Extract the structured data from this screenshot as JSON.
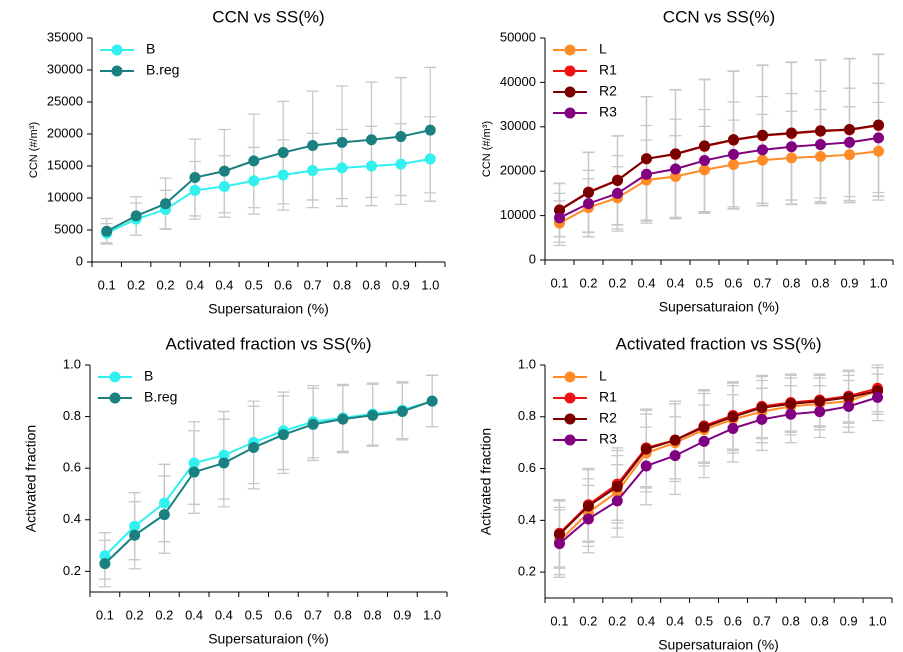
{
  "chart_data": [
    {
      "type": "line",
      "title": "CCN vs SS(%)",
      "x_label": "Supersaturaion (%)",
      "y_label": "CCN (#/m³)",
      "categories": [
        "0.1",
        "0.2",
        "0.2",
        "0.4",
        "0.4",
        "0.5",
        "0.6",
        "0.7",
        "0.8",
        "0.8",
        "0.9",
        "1.0"
      ],
      "ylim": [
        0,
        35000
      ],
      "yticks": [
        0,
        5000,
        10000,
        15000,
        20000,
        25000,
        30000,
        35000
      ],
      "legend": "upper left",
      "error_color": "#c8c8c8",
      "series": [
        {
          "name": "B",
          "color": "#33f0f0",
          "values": [
            4500,
            6700,
            8200,
            11200,
            11800,
            12700,
            13600,
            14300,
            14700,
            15000,
            15300,
            16100
          ],
          "errors": [
            1500,
            2500,
            3000,
            4500,
            4800,
            5200,
            5500,
            5800,
            6000,
            6200,
            6300,
            6600
          ]
        },
        {
          "name": "B.reg",
          "color": "#1a8080",
          "values": [
            4800,
            7200,
            9100,
            13200,
            14200,
            15800,
            17100,
            18200,
            18700,
            19100,
            19600,
            20600
          ],
          "errors": [
            2000,
            3000,
            4000,
            6000,
            6500,
            7300,
            8000,
            8500,
            8800,
            9000,
            9200,
            9800
          ]
        }
      ]
    },
    {
      "type": "line",
      "title": "CCN vs SS(%)",
      "x_label": "Supersaturaion (%)",
      "y_label": "CCN (#/m³)",
      "categories": [
        "0.1",
        "0.2",
        "0.2",
        "0.4",
        "0.4",
        "0.5",
        "0.6",
        "0.7",
        "0.8",
        "0.8",
        "0.9",
        "1.0"
      ],
      "ylim": [
        0,
        50000
      ],
      "yticks": [
        0,
        10000,
        20000,
        30000,
        40000,
        50000
      ],
      "legend": "upper left",
      "error_color": "#c8c8c8",
      "series": [
        {
          "name": "L",
          "color": "#ff8c28",
          "values": [
            8300,
            11800,
            14000,
            18000,
            18800,
            20300,
            21500,
            22500,
            23000,
            23300,
            23700,
            24500
          ],
          "errors": [
            5000,
            6500,
            7000,
            9000,
            9200,
            9800,
            10000,
            10300,
            10500,
            10600,
            10800,
            11000
          ]
        },
        {
          "name": "R1",
          "color": "#ee1111",
          "values": [
            11300,
            15300,
            18000,
            22800,
            23800,
            25600,
            27000,
            28000,
            28500,
            29000,
            29300,
            30300
          ],
          "errors": [
            6000,
            9000,
            10000,
            14000,
            14500,
            15000,
            15500,
            15800,
            16000,
            16000,
            16000,
            16000
          ]
        },
        {
          "name": "R2",
          "color": "#7a0000",
          "values": [
            11200,
            15200,
            17900,
            22800,
            23900,
            25700,
            27100,
            28100,
            28600,
            29100,
            29400,
            30400
          ],
          "errors": [
            6000,
            9000,
            10000,
            14000,
            14500,
            15000,
            15500,
            15800,
            16000,
            16000,
            16000,
            16000
          ]
        },
        {
          "name": "R3",
          "color": "#800080",
          "values": [
            9500,
            12700,
            15000,
            19300,
            20500,
            22400,
            23800,
            24800,
            25500,
            26000,
            26500,
            27500
          ],
          "errors": [
            5500,
            7500,
            8500,
            11000,
            11200,
            11500,
            11800,
            12000,
            12000,
            12000,
            12200,
            12300
          ]
        }
      ]
    },
    {
      "type": "line",
      "title": "Activated fraction  vs SS(%)",
      "x_label": "Supersaturaion (%)",
      "y_label": "Activated fraction",
      "categories": [
        "0.1",
        "0.2",
        "0.2",
        "0.4",
        "0.4",
        "0.5",
        "0.6",
        "0.7",
        "0.8",
        "0.8",
        "0.9",
        "1.0"
      ],
      "ylim": [
        0.12,
        1
      ],
      "yticks": [
        0.2,
        0.4,
        0.6,
        0.8,
        {
          "value": 1,
          "label": "1.0"
        }
      ],
      "legend": "upper left",
      "error_color": "#c8c8c8",
      "series": [
        {
          "name": "B",
          "color": "#33f0f0",
          "values": [
            0.26,
            0.375,
            0.465,
            0.62,
            0.65,
            0.7,
            0.745,
            0.78,
            0.795,
            0.81,
            0.825,
            0.86
          ],
          "errors": [
            0.09,
            0.13,
            0.15,
            0.16,
            0.17,
            0.16,
            0.15,
            0.14,
            0.13,
            0.12,
            0.11,
            0.1
          ]
        },
        {
          "name": "B.reg",
          "color": "#1a8080",
          "values": [
            0.23,
            0.34,
            0.42,
            0.585,
            0.62,
            0.68,
            0.73,
            0.77,
            0.79,
            0.805,
            0.82,
            0.86
          ],
          "errors": [
            0.09,
            0.13,
            0.15,
            0.16,
            0.17,
            0.16,
            0.15,
            0.14,
            0.13,
            0.12,
            0.11,
            0.1
          ]
        }
      ]
    },
    {
      "type": "line",
      "title": "Activated fraction vs SS(%)",
      "x_label": "Supersaturaion (%)",
      "y_label": "Activated fraction",
      "categories": [
        "0.1",
        "0.2",
        "0.2",
        "0.4",
        "0.4",
        "0.5",
        "0.6",
        "0.7",
        "0.8",
        "0.8",
        "0.9",
        "1.0"
      ],
      "ylim": [
        0.1,
        1
      ],
      "yticks": [
        0.2,
        0.4,
        0.6,
        0.8,
        {
          "value": 1,
          "label": "1.0"
        }
      ],
      "legend": "upper left",
      "error_color": "#c8c8c8",
      "series": [
        {
          "name": "L",
          "color": "#ff8c28",
          "values": [
            0.32,
            0.43,
            0.51,
            0.66,
            0.7,
            0.75,
            0.79,
            0.82,
            0.84,
            0.85,
            0.86,
            0.9
          ],
          "errors": [
            0.13,
            0.13,
            0.14,
            0.15,
            0.15,
            0.14,
            0.13,
            0.12,
            0.11,
            0.1,
            0.1,
            0.09
          ]
        },
        {
          "name": "R1",
          "color": "#ee1111",
          "values": [
            0.35,
            0.46,
            0.54,
            0.68,
            0.71,
            0.765,
            0.805,
            0.84,
            0.855,
            0.865,
            0.88,
            0.91
          ],
          "errors": [
            0.13,
            0.14,
            0.14,
            0.15,
            0.15,
            0.14,
            0.13,
            0.12,
            0.11,
            0.1,
            0.1,
            0.09
          ]
        },
        {
          "name": "R2",
          "color": "#7a0000",
          "values": [
            0.345,
            0.455,
            0.53,
            0.675,
            0.71,
            0.76,
            0.8,
            0.835,
            0.85,
            0.86,
            0.875,
            0.9
          ],
          "errors": [
            0.13,
            0.14,
            0.14,
            0.15,
            0.15,
            0.14,
            0.13,
            0.12,
            0.11,
            0.1,
            0.1,
            0.09
          ]
        },
        {
          "name": "R3",
          "color": "#800080",
          "values": [
            0.31,
            0.405,
            0.475,
            0.61,
            0.65,
            0.705,
            0.755,
            0.79,
            0.81,
            0.82,
            0.84,
            0.875
          ],
          "errors": [
            0.13,
            0.13,
            0.14,
            0.15,
            0.15,
            0.14,
            0.13,
            0.12,
            0.11,
            0.1,
            0.1,
            0.09
          ]
        }
      ]
    }
  ]
}
